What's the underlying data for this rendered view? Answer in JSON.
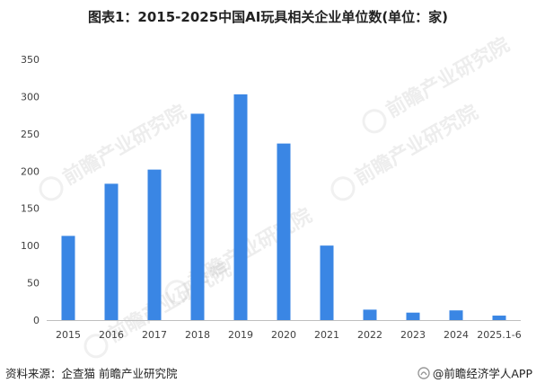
{
  "title": "图表1：2015-2025中国AI玩具相关企业单位数(单位：家)",
  "footer": {
    "source": "资料来源：企查猫 前瞻产业研究院",
    "brand": "@前瞻经济学人APP"
  },
  "watermark": {
    "text": "前瞻产业研究院"
  },
  "colors": {
    "bar": "#3A86E4",
    "axis": "#BFBFBF",
    "tick_text": "#404040"
  },
  "chart_data": {
    "type": "bar",
    "categories": [
      "2015",
      "2016",
      "2017",
      "2018",
      "2019",
      "2020",
      "2021",
      "2022",
      "2023",
      "2024",
      "2025.1-6"
    ],
    "values": [
      113,
      183,
      202,
      277,
      303,
      237,
      100,
      14,
      10,
      13,
      6
    ],
    "ylim": [
      0,
      350
    ],
    "yticks": [
      0,
      50,
      100,
      150,
      200,
      250,
      300,
      350
    ],
    "grid": false,
    "legend": "none"
  }
}
